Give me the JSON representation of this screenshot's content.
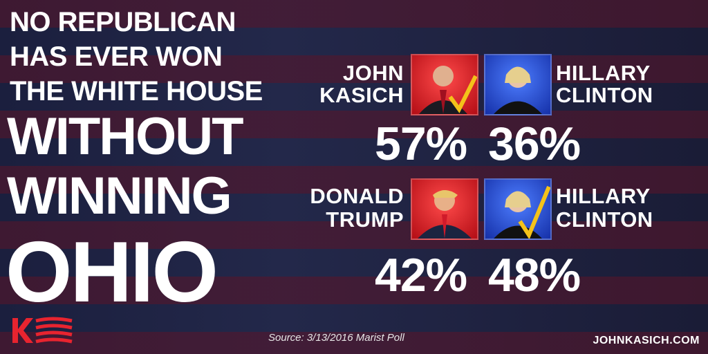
{
  "headline": {
    "lines": [
      "NO REPUBLICAN",
      "HAS EVER WON",
      "THE WHITE HOUSE",
      "WITHOUT",
      "WINNING",
      "OHIO"
    ]
  },
  "matchups": [
    {
      "left_name": [
        "JOHN",
        "KASICH"
      ],
      "right_name": [
        "HILLARY",
        "CLINTON"
      ],
      "left_result": "57%",
      "right_result": "36%"
    },
    {
      "left_name": [
        "DONALD",
        "TRUMP"
      ],
      "right_name": [
        "HILLARY",
        "CLINTON"
      ],
      "left_result": "42%",
      "right_result": "48%"
    }
  ],
  "source": "Source: 3/13/2016 Marist Poll",
  "website": "JOHNKASICH.COM"
}
